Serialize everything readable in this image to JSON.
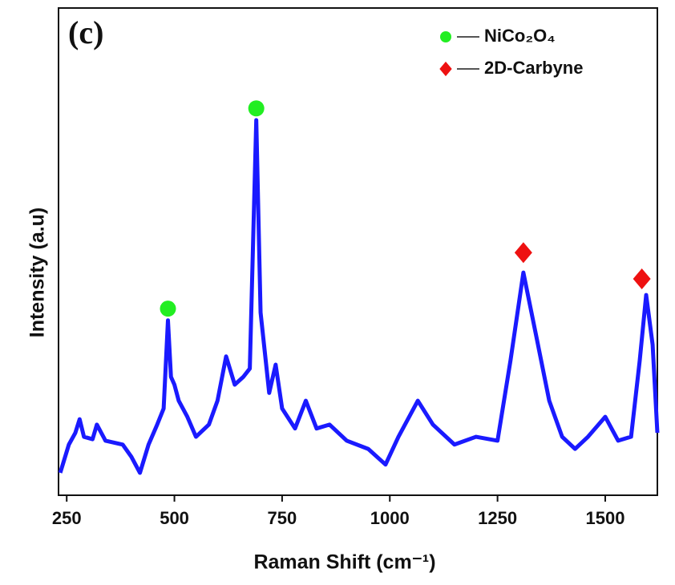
{
  "chart_data": {
    "type": "line",
    "panel_label": "(c)",
    "x_label": "Raman Shift (cm⁻¹)",
    "y_label": "Intensity (a.u)",
    "xlim": [
      231,
      1621
    ],
    "xticks": [
      250,
      500,
      750,
      1000,
      1250,
      1500
    ],
    "ylim": [
      0,
      100
    ],
    "spectrum": {
      "color": "#1a1aff",
      "x": [
        235,
        255,
        270,
        280,
        290,
        310,
        320,
        340,
        380,
        400,
        420,
        440,
        460,
        475,
        485,
        492,
        500,
        510,
        530,
        550,
        580,
        600,
        620,
        640,
        660,
        675,
        690,
        700,
        720,
        735,
        750,
        780,
        805,
        830,
        860,
        900,
        950,
        990,
        1020,
        1065,
        1100,
        1150,
        1200,
        1250,
        1280,
        1310,
        1340,
        1370,
        1400,
        1430,
        1460,
        1500,
        1530,
        1560,
        1580,
        1595,
        1610,
        1621
      ],
      "values": [
        4.6,
        10.4,
        12.8,
        15.6,
        12,
        11.5,
        14.5,
        11.2,
        10.4,
        7.9,
        4.6,
        10.4,
        14.5,
        17.8,
        35.9,
        24.3,
        22.7,
        19.4,
        16.1,
        12,
        14.5,
        19.4,
        28.5,
        22.7,
        24.3,
        26,
        77,
        37.5,
        21,
        26.8,
        17.8,
        13.7,
        19.4,
        13.7,
        14.5,
        11.2,
        9.5,
        6.3,
        12,
        19.4,
        14.5,
        10.4,
        12,
        11.2,
        27.6,
        45.7,
        32.6,
        19.4,
        12,
        9.5,
        12,
        16.1,
        11.2,
        12,
        27.6,
        41.1,
        30.9,
        12.8
      ]
    },
    "markers": [
      {
        "name": "NiCo₂O₄",
        "color": "#22ee22",
        "shape": "circle",
        "x": [
          485,
          690
        ],
        "values": [
          38.3,
          79.4
        ]
      },
      {
        "name": "2D-Carbyne",
        "color": "#ee1111",
        "shape": "diamond",
        "x": [
          1310,
          1585
        ],
        "values": [
          49.8,
          44.4
        ]
      }
    ],
    "legend": "upper right"
  }
}
